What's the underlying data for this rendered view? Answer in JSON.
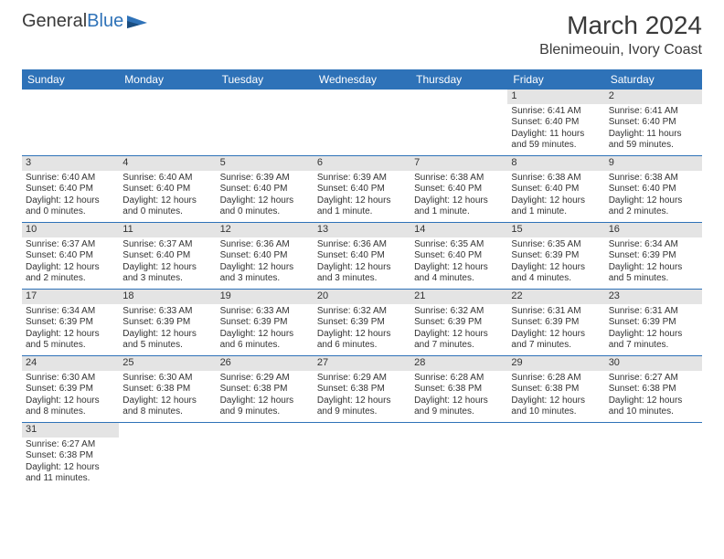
{
  "brand": {
    "part1": "General",
    "part2": "Blue"
  },
  "title": "March 2024",
  "location": "Blenimeouin, Ivory Coast",
  "colors": {
    "header_bg": "#2e72b8",
    "daynum_bg": "#e4e4e4",
    "row_border": "#2e72b8",
    "text": "#333333",
    "background": "#ffffff"
  },
  "day_labels": [
    "Sunday",
    "Monday",
    "Tuesday",
    "Wednesday",
    "Thursday",
    "Friday",
    "Saturday"
  ],
  "weeks": [
    [
      {
        "n": "",
        "lines": []
      },
      {
        "n": "",
        "lines": []
      },
      {
        "n": "",
        "lines": []
      },
      {
        "n": "",
        "lines": []
      },
      {
        "n": "",
        "lines": []
      },
      {
        "n": "1",
        "lines": [
          "Sunrise: 6:41 AM",
          "Sunset: 6:40 PM",
          "Daylight: 11 hours",
          "and 59 minutes."
        ]
      },
      {
        "n": "2",
        "lines": [
          "Sunrise: 6:41 AM",
          "Sunset: 6:40 PM",
          "Daylight: 11 hours",
          "and 59 minutes."
        ]
      }
    ],
    [
      {
        "n": "3",
        "lines": [
          "Sunrise: 6:40 AM",
          "Sunset: 6:40 PM",
          "Daylight: 12 hours",
          "and 0 minutes."
        ]
      },
      {
        "n": "4",
        "lines": [
          "Sunrise: 6:40 AM",
          "Sunset: 6:40 PM",
          "Daylight: 12 hours",
          "and 0 minutes."
        ]
      },
      {
        "n": "5",
        "lines": [
          "Sunrise: 6:39 AM",
          "Sunset: 6:40 PM",
          "Daylight: 12 hours",
          "and 0 minutes."
        ]
      },
      {
        "n": "6",
        "lines": [
          "Sunrise: 6:39 AM",
          "Sunset: 6:40 PM",
          "Daylight: 12 hours",
          "and 1 minute."
        ]
      },
      {
        "n": "7",
        "lines": [
          "Sunrise: 6:38 AM",
          "Sunset: 6:40 PM",
          "Daylight: 12 hours",
          "and 1 minute."
        ]
      },
      {
        "n": "8",
        "lines": [
          "Sunrise: 6:38 AM",
          "Sunset: 6:40 PM",
          "Daylight: 12 hours",
          "and 1 minute."
        ]
      },
      {
        "n": "9",
        "lines": [
          "Sunrise: 6:38 AM",
          "Sunset: 6:40 PM",
          "Daylight: 12 hours",
          "and 2 minutes."
        ]
      }
    ],
    [
      {
        "n": "10",
        "lines": [
          "Sunrise: 6:37 AM",
          "Sunset: 6:40 PM",
          "Daylight: 12 hours",
          "and 2 minutes."
        ]
      },
      {
        "n": "11",
        "lines": [
          "Sunrise: 6:37 AM",
          "Sunset: 6:40 PM",
          "Daylight: 12 hours",
          "and 3 minutes."
        ]
      },
      {
        "n": "12",
        "lines": [
          "Sunrise: 6:36 AM",
          "Sunset: 6:40 PM",
          "Daylight: 12 hours",
          "and 3 minutes."
        ]
      },
      {
        "n": "13",
        "lines": [
          "Sunrise: 6:36 AM",
          "Sunset: 6:40 PM",
          "Daylight: 12 hours",
          "and 3 minutes."
        ]
      },
      {
        "n": "14",
        "lines": [
          "Sunrise: 6:35 AM",
          "Sunset: 6:40 PM",
          "Daylight: 12 hours",
          "and 4 minutes."
        ]
      },
      {
        "n": "15",
        "lines": [
          "Sunrise: 6:35 AM",
          "Sunset: 6:39 PM",
          "Daylight: 12 hours",
          "and 4 minutes."
        ]
      },
      {
        "n": "16",
        "lines": [
          "Sunrise: 6:34 AM",
          "Sunset: 6:39 PM",
          "Daylight: 12 hours",
          "and 5 minutes."
        ]
      }
    ],
    [
      {
        "n": "17",
        "lines": [
          "Sunrise: 6:34 AM",
          "Sunset: 6:39 PM",
          "Daylight: 12 hours",
          "and 5 minutes."
        ]
      },
      {
        "n": "18",
        "lines": [
          "Sunrise: 6:33 AM",
          "Sunset: 6:39 PM",
          "Daylight: 12 hours",
          "and 5 minutes."
        ]
      },
      {
        "n": "19",
        "lines": [
          "Sunrise: 6:33 AM",
          "Sunset: 6:39 PM",
          "Daylight: 12 hours",
          "and 6 minutes."
        ]
      },
      {
        "n": "20",
        "lines": [
          "Sunrise: 6:32 AM",
          "Sunset: 6:39 PM",
          "Daylight: 12 hours",
          "and 6 minutes."
        ]
      },
      {
        "n": "21",
        "lines": [
          "Sunrise: 6:32 AM",
          "Sunset: 6:39 PM",
          "Daylight: 12 hours",
          "and 7 minutes."
        ]
      },
      {
        "n": "22",
        "lines": [
          "Sunrise: 6:31 AM",
          "Sunset: 6:39 PM",
          "Daylight: 12 hours",
          "and 7 minutes."
        ]
      },
      {
        "n": "23",
        "lines": [
          "Sunrise: 6:31 AM",
          "Sunset: 6:39 PM",
          "Daylight: 12 hours",
          "and 7 minutes."
        ]
      }
    ],
    [
      {
        "n": "24",
        "lines": [
          "Sunrise: 6:30 AM",
          "Sunset: 6:39 PM",
          "Daylight: 12 hours",
          "and 8 minutes."
        ]
      },
      {
        "n": "25",
        "lines": [
          "Sunrise: 6:30 AM",
          "Sunset: 6:38 PM",
          "Daylight: 12 hours",
          "and 8 minutes."
        ]
      },
      {
        "n": "26",
        "lines": [
          "Sunrise: 6:29 AM",
          "Sunset: 6:38 PM",
          "Daylight: 12 hours",
          "and 9 minutes."
        ]
      },
      {
        "n": "27",
        "lines": [
          "Sunrise: 6:29 AM",
          "Sunset: 6:38 PM",
          "Daylight: 12 hours",
          "and 9 minutes."
        ]
      },
      {
        "n": "28",
        "lines": [
          "Sunrise: 6:28 AM",
          "Sunset: 6:38 PM",
          "Daylight: 12 hours",
          "and 9 minutes."
        ]
      },
      {
        "n": "29",
        "lines": [
          "Sunrise: 6:28 AM",
          "Sunset: 6:38 PM",
          "Daylight: 12 hours",
          "and 10 minutes."
        ]
      },
      {
        "n": "30",
        "lines": [
          "Sunrise: 6:27 AM",
          "Sunset: 6:38 PM",
          "Daylight: 12 hours",
          "and 10 minutes."
        ]
      }
    ],
    [
      {
        "n": "31",
        "lines": [
          "Sunrise: 6:27 AM",
          "Sunset: 6:38 PM",
          "Daylight: 12 hours",
          "and 11 minutes."
        ]
      },
      {
        "n": "",
        "lines": []
      },
      {
        "n": "",
        "lines": []
      },
      {
        "n": "",
        "lines": []
      },
      {
        "n": "",
        "lines": []
      },
      {
        "n": "",
        "lines": []
      },
      {
        "n": "",
        "lines": []
      }
    ]
  ]
}
